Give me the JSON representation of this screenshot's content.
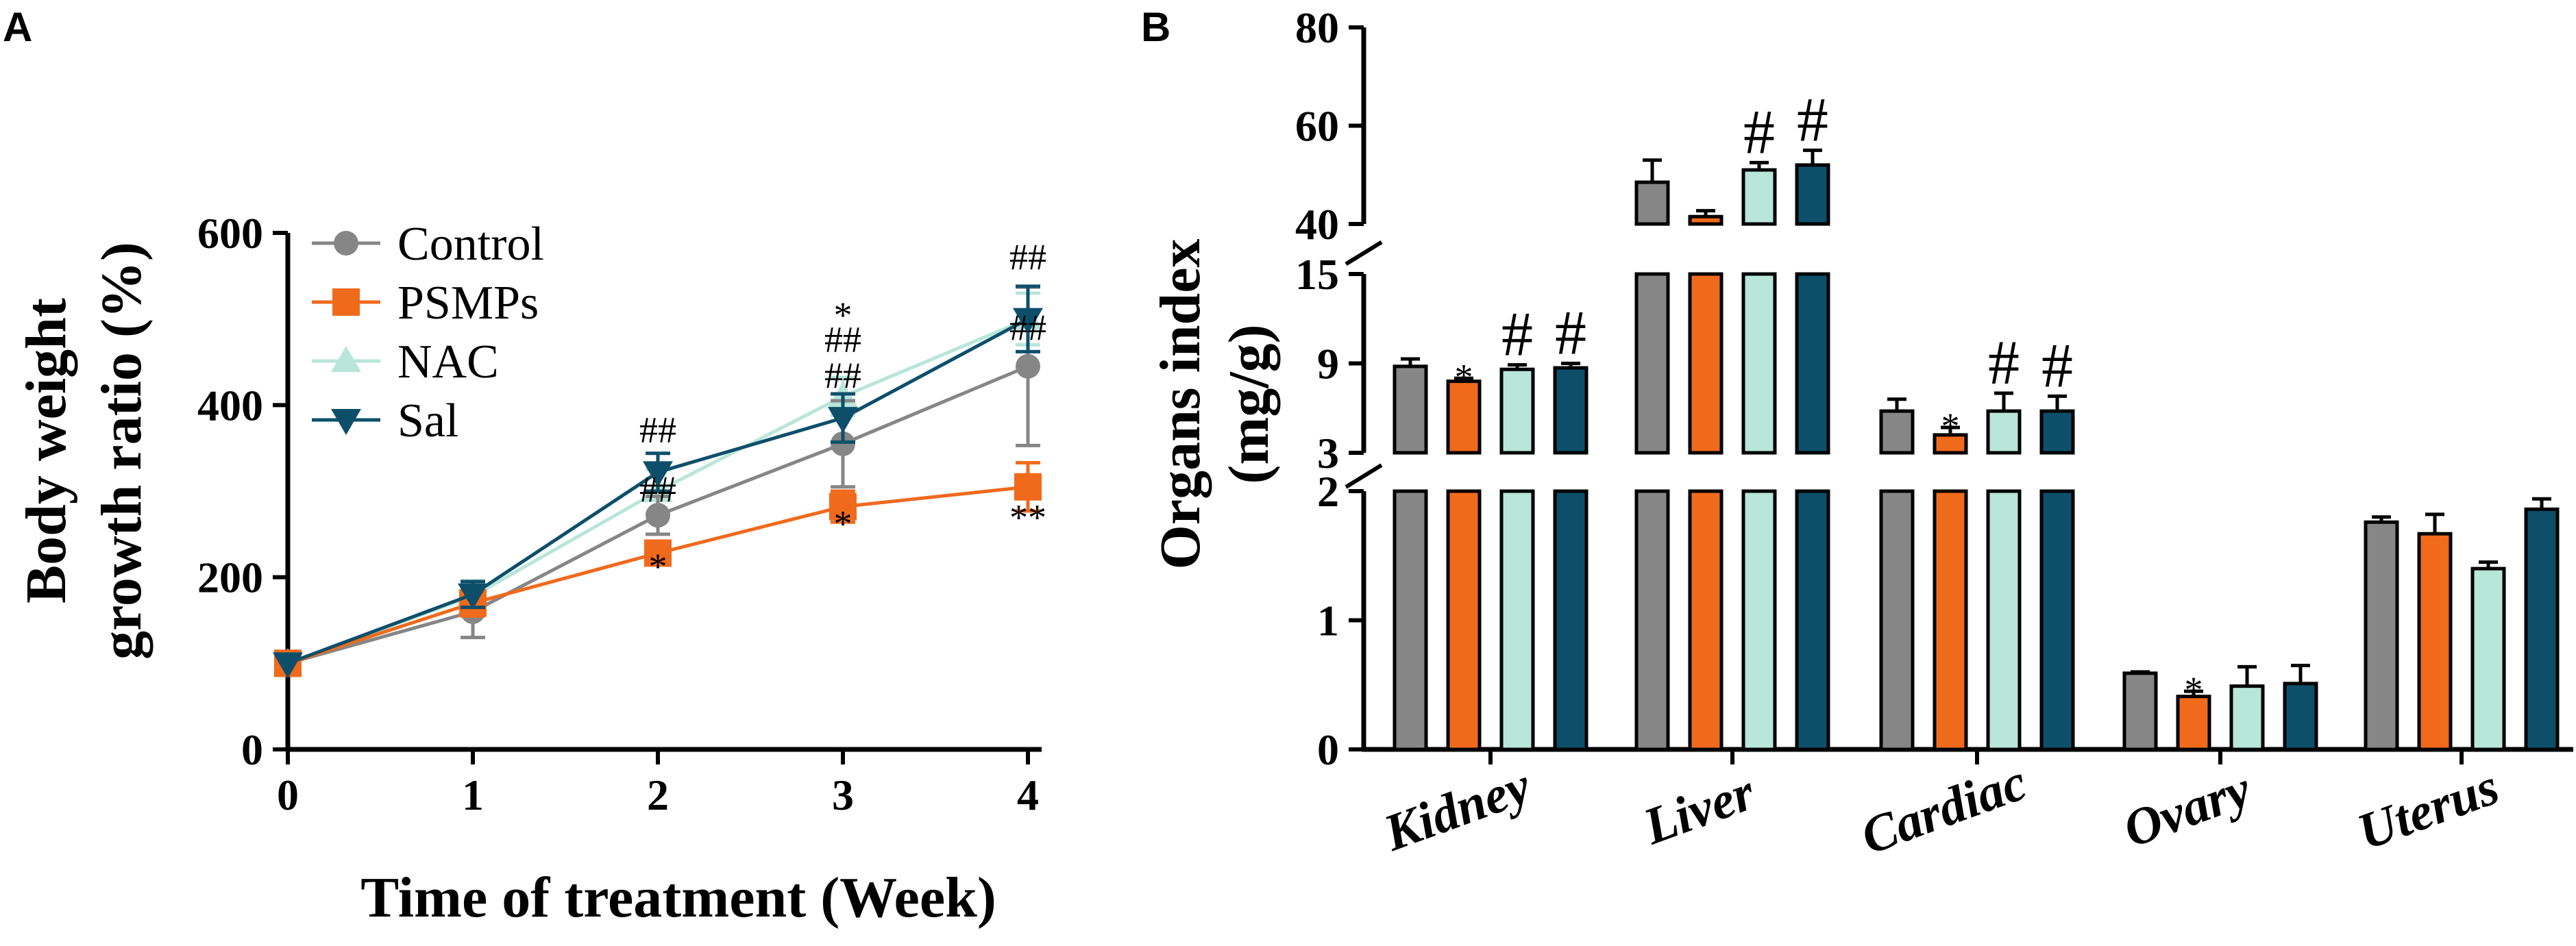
{
  "figure": {
    "panel_a_label": "A",
    "panel_b_label": "B"
  },
  "colors": {
    "Control": "#868686",
    "PSMPs": "#f06a1c",
    "NAC": "#b8e6d9",
    "Sal": "#0d4f6b"
  },
  "chart_data": [
    {
      "type": "line",
      "panel": "A",
      "title": "",
      "xlabel": "Time of treatment (Week)",
      "ylabel_line1": "Body weight",
      "ylabel_line2": "growth ratio (%)",
      "x": [
        0,
        1,
        2,
        3,
        4
      ],
      "x_ticks": [
        "0",
        "1",
        "2",
        "3",
        "4"
      ],
      "ylim": [
        0,
        600
      ],
      "y_ticks": [
        "0",
        "200",
        "400",
        "600"
      ],
      "legend_position": "top-left",
      "series": [
        {
          "name": "Control",
          "marker": "circle",
          "values": [
            100,
            160,
            272,
            355,
            445
          ],
          "errors": [
            0,
            30,
            22,
            50,
            92
          ]
        },
        {
          "name": "PSMPs",
          "marker": "square",
          "values": [
            100,
            170,
            228,
            282,
            305
          ],
          "errors": [
            0,
            15,
            12,
            18,
            28
          ]
        },
        {
          "name": "NAC",
          "marker": "triangle-up",
          "values": [
            100,
            178,
            300,
            410,
            500
          ],
          "errors": [
            0,
            18,
            25,
            22,
            30
          ]
        },
        {
          "name": "Sal",
          "marker": "triangle-down",
          "values": [
            100,
            180,
            322,
            385,
            500
          ],
          "errors": [
            0,
            15,
            22,
            28,
            38
          ]
        }
      ],
      "annotations": [
        {
          "x": 2,
          "y": 357,
          "text": "##"
        },
        {
          "x": 2,
          "y": 288,
          "text": "##"
        },
        {
          "x": 2,
          "y": 198,
          "text": "*"
        },
        {
          "x": 3,
          "y": 490,
          "text": "*"
        },
        {
          "x": 3,
          "y": 462,
          "text": "##"
        },
        {
          "x": 3,
          "y": 420,
          "text": "##"
        },
        {
          "x": 3,
          "y": 248,
          "text": "*"
        },
        {
          "x": 4,
          "y": 558,
          "text": "##"
        },
        {
          "x": 4,
          "y": 476,
          "text": "##"
        },
        {
          "x": 4,
          "y": 255,
          "text": "**"
        }
      ]
    },
    {
      "type": "bar",
      "panel": "B",
      "title": "",
      "xlabel": "",
      "ylabel_line1": "Organs index",
      "ylabel_line2": "(mg/g)",
      "categories": [
        "Kidney",
        "Liver",
        "Cardiac",
        "Ovary",
        "Uterus"
      ],
      "axis_segments": [
        {
          "range": [
            0,
            2
          ],
          "ticks": [
            "0",
            "1",
            "2"
          ]
        },
        {
          "range": [
            3,
            15
          ],
          "ticks": [
            "3",
            "9",
            "15"
          ]
        },
        {
          "range": [
            40,
            80
          ],
          "ticks": [
            "40",
            "60",
            "80"
          ]
        }
      ],
      "series": [
        {
          "name": "Control",
          "values": [
            8.8,
            48.5,
            5.8,
            0.59,
            1.76
          ],
          "errors": [
            0.5,
            4.5,
            0.8,
            0.01,
            0.04
          ]
        },
        {
          "name": "PSMPs",
          "values": [
            7.8,
            41.5,
            4.2,
            0.41,
            1.67
          ],
          "errors": [
            0.2,
            1.2,
            0.5,
            0.04,
            0.15
          ]
        },
        {
          "name": "NAC",
          "values": [
            8.6,
            51.0,
            5.8,
            0.49,
            1.4
          ],
          "errors": [
            0.3,
            1.5,
            1.2,
            0.15,
            0.05
          ]
        },
        {
          "name": "Sal",
          "values": [
            8.7,
            52.0,
            5.8,
            0.51,
            1.86
          ],
          "errors": [
            0.3,
            3.0,
            1.0,
            0.14,
            0.08
          ]
        }
      ],
      "annotations": [
        {
          "category": 0,
          "series": 1,
          "text": "*"
        },
        {
          "category": 0,
          "series": 2,
          "text": "#"
        },
        {
          "category": 0,
          "series": 3,
          "text": "#"
        },
        {
          "category": 1,
          "series": 2,
          "text": "#"
        },
        {
          "category": 1,
          "series": 3,
          "text": "#"
        },
        {
          "category": 2,
          "series": 1,
          "text": "*"
        },
        {
          "category": 2,
          "series": 2,
          "text": "#"
        },
        {
          "category": 2,
          "series": 3,
          "text": "#"
        },
        {
          "category": 3,
          "series": 1,
          "text": "*"
        }
      ]
    }
  ]
}
